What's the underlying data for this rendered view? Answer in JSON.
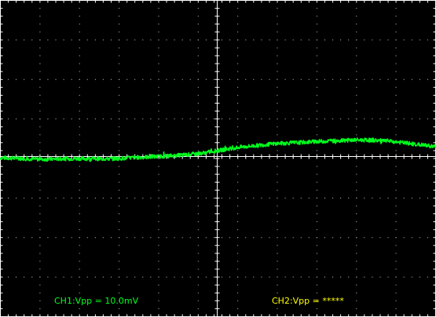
{
  "chart_data": {
    "type": "line",
    "title": "",
    "xlabel": "",
    "ylabel": "",
    "divisions": {
      "x": 11,
      "y": 8
    },
    "xlim": [
      0,
      11
    ],
    "ylim": [
      -4,
      4
    ],
    "grid": true,
    "series": [
      {
        "channel": "CH1",
        "color": "#00ff1e",
        "x": [
          0,
          0.5,
          1,
          1.5,
          2,
          2.5,
          3,
          3.5,
          4,
          4.5,
          5,
          5.5,
          6,
          6.5,
          7,
          7.5,
          8,
          8.5,
          9,
          9.5,
          10,
          10.5,
          11
        ],
        "y": [
          0.02,
          0.0,
          -0.02,
          -0.01,
          0.0,
          -0.01,
          0.0,
          0.03,
          0.05,
          0.08,
          0.12,
          0.2,
          0.28,
          0.33,
          0.38,
          0.4,
          0.43,
          0.45,
          0.47,
          0.46,
          0.42,
          0.36,
          0.3
        ],
        "noise": 0.05
      }
    ]
  },
  "readouts": {
    "ch1": {
      "text": "CH1:Vpp = 10.0mV",
      "color": "#00ff1e"
    },
    "ch2": {
      "text": "CH2:Vpp = *****",
      "color": "#ffff00"
    }
  },
  "colors": {
    "background": "#000000",
    "grid_dots": "#c8c8c8",
    "axes": "#ffffff"
  }
}
